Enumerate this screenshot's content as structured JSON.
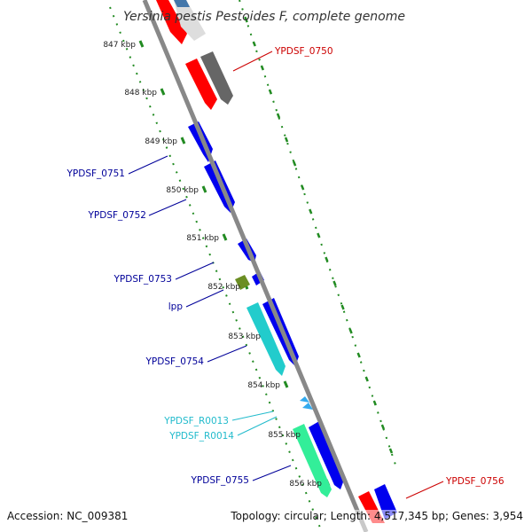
{
  "title": "Yersinia pestis Pestoides F, complete genome",
  "accession_text": "Accession: NC_009381",
  "summary_text": "Topology: circular; Length: 4,517,345 bp; Genes: 3,954",
  "colors": {
    "red": "#ff0000",
    "blue": "#0000ee",
    "gray": "#666666",
    "olive": "#6b8e23",
    "cyan": "#22cccc",
    "teal": "#33ee99",
    "light_blue": "#33aaee",
    "tick_green": "#228b22",
    "backbone": "#888888",
    "label_red": "#cc0000",
    "label_blue": "#000099",
    "label_cyan": "#22bbcc"
  },
  "ticks": [
    "847 kbp",
    "848 kbp",
    "849 kbp",
    "850 kbp",
    "851 kbp",
    "852 kbp",
    "853 kbp",
    "854 kbp",
    "855 kbp",
    "856 kbp"
  ],
  "gene_labels": [
    {
      "text": "YPDSF_0750",
      "color": "label_red"
    },
    {
      "text": "YPDSF_0751",
      "color": "label_blue"
    },
    {
      "text": "YPDSF_0752",
      "color": "label_blue"
    },
    {
      "text": "YPDSF_0753",
      "color": "label_blue"
    },
    {
      "text": "lpp",
      "color": "label_blue"
    },
    {
      "text": "YPDSF_0754",
      "color": "label_blue"
    },
    {
      "text": "YPDSF_R0013",
      "color": "label_cyan"
    },
    {
      "text": "YPDSF_R0014",
      "color": "label_cyan"
    },
    {
      "text": "YPDSF_0755",
      "color": "label_blue"
    },
    {
      "text": "YPDSF_0756",
      "color": "label_red"
    }
  ]
}
